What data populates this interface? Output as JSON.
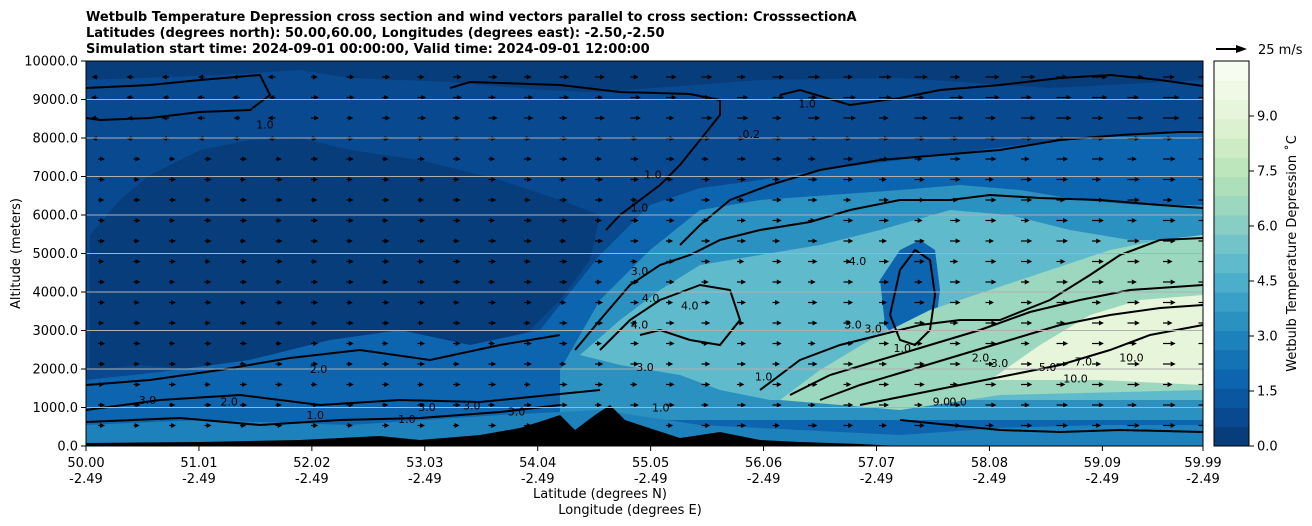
{
  "chart_data": {
    "type": "heatmap",
    "title_lines": [
      "Wetbulb Temperature Depression cross section and wind vectors parallel to cross section: CrosssectionA",
      "Latitudes (degrees north): 50.00,60.00, Longitudes (degrees east): -2.50,-2.50",
      "Simulation start time: 2024-09-01 00:00:00, Valid time: 2024-09-01 12:00:00"
    ],
    "x_tick_labels_lat": [
      "50.00",
      "51.01",
      "52.02",
      "53.03",
      "54.04",
      "55.05",
      "56.06",
      "57.07",
      "58.08",
      "59.09",
      "59.99"
    ],
    "x_tick_labels_lon": [
      "-2.49",
      "-2.49",
      "-2.49",
      "-2.49",
      "-2.49",
      "-2.49",
      "-2.49",
      "-2.49",
      "-2.49",
      "-2.49",
      "-2.49"
    ],
    "xlabel_lines": [
      "Latitude (degrees N)",
      "Longitude (degrees E)"
    ],
    "xlim": [
      50.0,
      59.99
    ],
    "y_ticks": [
      "0.0",
      "1000.0",
      "2000.0",
      "3000.0",
      "4000.0",
      "5000.0",
      "6000.0",
      "7000.0",
      "8000.0",
      "9000.0",
      "10000.0"
    ],
    "ylabel": "Altitude (meters)",
    "ylim": [
      0,
      10000
    ],
    "grid": "horizontal",
    "colorbar": {
      "label": "Wetbulb Temperature Depression ˚C",
      "ticks": [
        "0.0",
        "1.5",
        "3.0",
        "4.5",
        "6.0",
        "7.5",
        "9.0"
      ],
      "range": [
        0,
        10.5
      ],
      "colors": [
        "#083d7c",
        "#08498f",
        "#0a56a0",
        "#0d64af",
        "#1373b5",
        "#1d82bb",
        "#2b91c0",
        "#3aa0c7",
        "#4caecb",
        "#5fbacc",
        "#73c4c9",
        "#88cec4",
        "#9cd7bf",
        "#aedfbb",
        "#bee6bd",
        "#cdecc5",
        "#dbf1cf",
        "#e7f5da",
        "#f0f9e6",
        "#f7fcf0"
      ]
    },
    "wind_reference": {
      "label": "25 m/s"
    },
    "contour_labels": [
      {
        "text": "1.0",
        "lat": 51.6,
        "alt": 8350
      },
      {
        "text": "1.0",
        "lat": 56.45,
        "alt": 8900
      },
      {
        "text": "1.0",
        "lat": 55.07,
        "alt": 7050
      },
      {
        "text": "1.0",
        "lat": 54.95,
        "alt": 6200
      },
      {
        "text": "0.2",
        "lat": 55.95,
        "alt": 8100
      },
      {
        "text": "3.0",
        "lat": 54.95,
        "alt": 4550
      },
      {
        "text": "4.0",
        "lat": 56.9,
        "alt": 4800
      },
      {
        "text": "4.0",
        "lat": 55.05,
        "alt": 3850
      },
      {
        "text": "4.0",
        "lat": 55.4,
        "alt": 3650
      },
      {
        "text": "4.0",
        "lat": 54.95,
        "alt": 3150
      },
      {
        "text": "3.0",
        "lat": 56.86,
        "alt": 3150
      },
      {
        "text": "3.0",
        "lat": 57.04,
        "alt": 3050
      },
      {
        "text": "1.0",
        "lat": 57.3,
        "alt": 2550
      },
      {
        "text": "2.0",
        "lat": 58.0,
        "alt": 2300
      },
      {
        "text": "3.0",
        "lat": 58.17,
        "alt": 2150
      },
      {
        "text": "5.0",
        "lat": 58.6,
        "alt": 2050
      },
      {
        "text": "7.0",
        "lat": 58.92,
        "alt": 2200
      },
      {
        "text": "10.0",
        "lat": 59.35,
        "alt": 2300
      },
      {
        "text": "10.0",
        "lat": 58.85,
        "alt": 1750
      },
      {
        "text": "3.0",
        "lat": 55.0,
        "alt": 2050
      },
      {
        "text": "1.0",
        "lat": 56.06,
        "alt": 1800
      },
      {
        "text": "2.0",
        "lat": 52.08,
        "alt": 2000
      },
      {
        "text": "3.0",
        "lat": 50.55,
        "alt": 1200
      },
      {
        "text": "2.0",
        "lat": 51.28,
        "alt": 1150
      },
      {
        "text": "1.0",
        "lat": 52.05,
        "alt": 800
      },
      {
        "text": "3.0",
        "lat": 53.45,
        "alt": 1050
      },
      {
        "text": "3.0",
        "lat": 53.05,
        "alt": 1010
      },
      {
        "text": "3.0",
        "lat": 53.85,
        "alt": 900
      },
      {
        "text": "1.0",
        "lat": 55.14,
        "alt": 1000
      },
      {
        "text": "1.0",
        "lat": 52.87,
        "alt": 700
      },
      {
        "text": "9.0",
        "lat": 57.65,
        "alt": 1150
      },
      {
        "text": "0.0",
        "lat": 57.8,
        "alt": 1150
      }
    ]
  }
}
